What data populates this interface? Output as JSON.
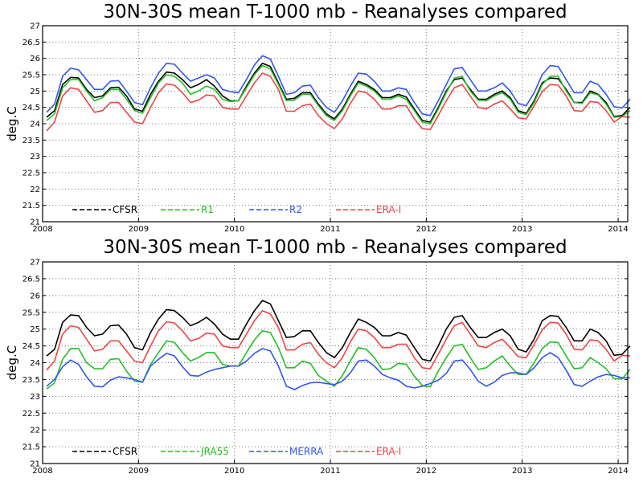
{
  "colors": {
    "CFSR": "#000000",
    "R1": "#22c022",
    "JRA55": "#22c022",
    "R2": "#3355ee",
    "MERRA": "#3355ee",
    "ERA-I": "#ee4444"
  },
  "chart_data": [
    {
      "type": "line",
      "title": "30N-30S mean T-1000 mb - Reanalyses compared",
      "xlabel": "",
      "ylabel": "deg.C",
      "xlim": [
        2008.0,
        2014.1
      ],
      "ylim": [
        21,
        27
      ],
      "xticks": [
        2008,
        2009,
        2010,
        2011,
        2012,
        2013,
        2014
      ],
      "yticks": [
        21,
        21.5,
        22,
        22.5,
        23,
        23.5,
        24,
        24.5,
        25,
        25.5,
        26,
        26.5,
        27
      ],
      "grid": true,
      "legend_position": "bottom",
      "series": [
        {
          "name": "CFSR",
          "values": [
            24.2,
            24.4,
            25.2,
            25.42,
            25.4,
            25.05,
            24.8,
            24.85,
            25.1,
            25.12,
            24.85,
            24.45,
            24.38,
            24.9,
            25.3,
            25.58,
            25.55,
            25.35,
            25.1,
            25.2,
            25.35,
            25.15,
            24.85,
            24.7,
            24.7,
            25.15,
            25.55,
            25.85,
            25.75,
            25.25,
            24.75,
            24.78,
            24.95,
            24.95,
            24.6,
            24.3,
            24.15,
            24.45,
            24.9,
            25.3,
            25.2,
            25.05,
            24.8,
            24.8,
            24.9,
            24.82,
            24.45,
            24.1,
            24.05,
            24.5,
            25.0,
            25.35,
            25.4,
            25.05,
            24.75,
            24.75,
            24.9,
            25.0,
            24.8,
            24.4,
            24.32,
            24.7,
            25.25,
            25.4,
            25.38,
            25.05,
            24.65,
            24.65,
            25.0,
            24.9,
            24.65,
            24.22,
            24.25,
            24.5
          ]
        },
        {
          "name": "R1",
          "values": [
            24.1,
            24.3,
            25.1,
            25.35,
            25.35,
            25.0,
            24.7,
            24.8,
            25.05,
            25.05,
            24.75,
            24.4,
            24.32,
            24.8,
            25.25,
            25.5,
            25.45,
            25.25,
            24.9,
            25.0,
            25.15,
            25.05,
            24.75,
            24.68,
            24.7,
            25.1,
            25.5,
            25.78,
            25.68,
            25.2,
            24.7,
            24.72,
            24.9,
            24.9,
            24.55,
            24.25,
            24.1,
            24.4,
            24.85,
            25.25,
            25.15,
            25.0,
            24.75,
            24.75,
            24.85,
            24.75,
            24.4,
            24.05,
            24.0,
            24.45,
            24.95,
            25.4,
            25.45,
            25.0,
            24.72,
            24.7,
            24.85,
            24.95,
            24.75,
            24.35,
            24.28,
            24.65,
            25.2,
            25.45,
            25.45,
            25.0,
            24.65,
            24.62,
            24.95,
            24.88,
            24.6,
            24.2,
            24.22,
            24.4
          ]
        },
        {
          "name": "R2",
          "values": [
            24.35,
            24.6,
            25.45,
            25.7,
            25.65,
            25.35,
            25.05,
            25.05,
            25.3,
            25.32,
            25.0,
            24.65,
            24.58,
            25.1,
            25.55,
            25.85,
            25.82,
            25.55,
            25.3,
            25.4,
            25.5,
            25.4,
            25.05,
            24.98,
            24.95,
            25.35,
            25.8,
            26.08,
            25.98,
            25.45,
            24.9,
            24.95,
            25.15,
            25.18,
            24.8,
            24.5,
            24.35,
            24.7,
            25.15,
            25.55,
            25.52,
            25.3,
            25.0,
            25.0,
            25.1,
            25.05,
            24.65,
            24.3,
            24.25,
            24.7,
            25.2,
            25.68,
            25.72,
            25.35,
            25.0,
            25.0,
            25.1,
            25.25,
            25.0,
            24.62,
            24.55,
            24.95,
            25.5,
            25.78,
            25.75,
            25.35,
            24.95,
            24.95,
            25.3,
            25.2,
            24.9,
            24.52,
            24.48,
            24.75
          ]
        },
        {
          "name": "ERA-I",
          "values": [
            23.78,
            24.05,
            24.85,
            25.1,
            25.05,
            24.7,
            24.35,
            24.4,
            24.65,
            24.65,
            24.35,
            24.05,
            24.0,
            24.5,
            24.95,
            25.22,
            25.18,
            24.95,
            24.65,
            24.72,
            24.88,
            24.85,
            24.5,
            24.45,
            24.45,
            24.85,
            25.25,
            25.55,
            25.45,
            25.05,
            24.38,
            24.38,
            24.55,
            24.6,
            24.25,
            24.0,
            23.85,
            24.15,
            24.62,
            25.0,
            24.95,
            24.75,
            24.45,
            24.45,
            24.55,
            24.55,
            24.15,
            23.85,
            23.82,
            24.25,
            24.7,
            25.1,
            25.2,
            24.85,
            24.5,
            24.45,
            24.6,
            24.7,
            24.45,
            24.18,
            24.15,
            24.55,
            24.98,
            25.2,
            25.18,
            24.85,
            24.4,
            24.38,
            24.68,
            24.65,
            24.4,
            24.05,
            24.22,
            24.2
          ]
        }
      ]
    },
    {
      "type": "line",
      "title": "30N-30S mean T-1000 mb - Reanalyses compared",
      "xlabel": "",
      "ylabel": "deg.C",
      "xlim": [
        2008.0,
        2014.1
      ],
      "ylim": [
        21,
        27
      ],
      "xticks": [
        2008,
        2009,
        2010,
        2011,
        2012,
        2013,
        2014
      ],
      "yticks": [
        21,
        21.5,
        22,
        22.5,
        23,
        23.5,
        24,
        24.5,
        25,
        25.5,
        26,
        26.5,
        27
      ],
      "grid": true,
      "legend_position": "bottom",
      "series": [
        {
          "name": "CFSR",
          "values": [
            24.2,
            24.4,
            25.2,
            25.42,
            25.4,
            25.05,
            24.8,
            24.85,
            25.1,
            25.12,
            24.85,
            24.45,
            24.38,
            24.9,
            25.3,
            25.58,
            25.55,
            25.35,
            25.1,
            25.2,
            25.35,
            25.15,
            24.85,
            24.7,
            24.7,
            25.15,
            25.55,
            25.85,
            25.75,
            25.25,
            24.75,
            24.78,
            24.95,
            24.95,
            24.6,
            24.3,
            24.15,
            24.45,
            24.9,
            25.3,
            25.2,
            25.05,
            24.8,
            24.8,
            24.9,
            24.82,
            24.45,
            24.1,
            24.05,
            24.5,
            25.0,
            25.35,
            25.4,
            25.05,
            24.75,
            24.75,
            24.9,
            25.0,
            24.8,
            24.4,
            24.32,
            24.7,
            25.25,
            25.4,
            25.38,
            25.05,
            24.65,
            24.65,
            25.0,
            24.9,
            24.65,
            24.22,
            24.25,
            24.5
          ]
        },
        {
          "name": "JRA55",
          "values": [
            23.22,
            23.4,
            24.1,
            24.42,
            24.42,
            24.0,
            23.82,
            23.82,
            24.1,
            24.12,
            23.75,
            23.45,
            23.42,
            23.95,
            24.3,
            24.65,
            24.6,
            24.3,
            24.05,
            24.15,
            24.3,
            24.3,
            23.95,
            23.9,
            23.9,
            24.3,
            24.68,
            24.95,
            24.9,
            24.45,
            23.85,
            23.85,
            24.05,
            23.98,
            23.62,
            23.45,
            23.3,
            23.62,
            24.05,
            24.45,
            24.4,
            24.15,
            23.8,
            23.82,
            23.98,
            23.95,
            23.6,
            23.32,
            23.28,
            23.75,
            24.15,
            24.5,
            24.55,
            24.15,
            23.8,
            23.85,
            24.05,
            24.2,
            23.9,
            23.65,
            23.65,
            24.0,
            24.42,
            24.62,
            24.6,
            24.2,
            23.82,
            23.85,
            24.15,
            24.0,
            23.82,
            23.52,
            23.52,
            23.8
          ]
        },
        {
          "name": "MERRA",
          "values": [
            23.3,
            23.5,
            23.88,
            24.08,
            23.95,
            23.58,
            23.3,
            23.28,
            23.48,
            23.58,
            23.55,
            23.5,
            23.42,
            23.9,
            24.1,
            24.28,
            24.2,
            23.88,
            23.62,
            23.6,
            23.72,
            23.8,
            23.85,
            23.9,
            23.9,
            24.05,
            24.28,
            24.42,
            24.35,
            23.9,
            23.3,
            23.2,
            23.32,
            23.4,
            23.42,
            23.38,
            23.35,
            23.45,
            23.7,
            24.05,
            24.08,
            23.9,
            23.65,
            23.55,
            23.48,
            23.3,
            23.25,
            23.3,
            23.38,
            23.48,
            23.68,
            24.05,
            24.08,
            23.8,
            23.45,
            23.3,
            23.42,
            23.62,
            23.7,
            23.7,
            23.65,
            23.85,
            24.15,
            24.3,
            24.15,
            23.78,
            23.35,
            23.3,
            23.45,
            23.58,
            23.65,
            23.62,
            23.55,
            23.55
          ]
        },
        {
          "name": "ERA-I",
          "values": [
            23.78,
            24.05,
            24.85,
            25.1,
            25.05,
            24.7,
            24.35,
            24.4,
            24.65,
            24.65,
            24.35,
            24.05,
            24.0,
            24.5,
            24.95,
            25.22,
            25.18,
            24.95,
            24.65,
            24.72,
            24.88,
            24.85,
            24.5,
            24.45,
            24.45,
            24.85,
            25.25,
            25.55,
            25.45,
            25.05,
            24.38,
            24.38,
            24.55,
            24.6,
            24.25,
            24.0,
            23.85,
            24.15,
            24.62,
            25.0,
            24.95,
            24.75,
            24.45,
            24.45,
            24.55,
            24.55,
            24.15,
            23.85,
            23.82,
            24.25,
            24.7,
            25.1,
            25.2,
            24.85,
            24.5,
            24.45,
            24.6,
            24.7,
            24.45,
            24.18,
            24.15,
            24.55,
            24.98,
            25.2,
            25.18,
            24.85,
            24.4,
            24.38,
            24.68,
            24.65,
            24.4,
            24.05,
            24.22,
            24.2
          ]
        }
      ]
    }
  ]
}
